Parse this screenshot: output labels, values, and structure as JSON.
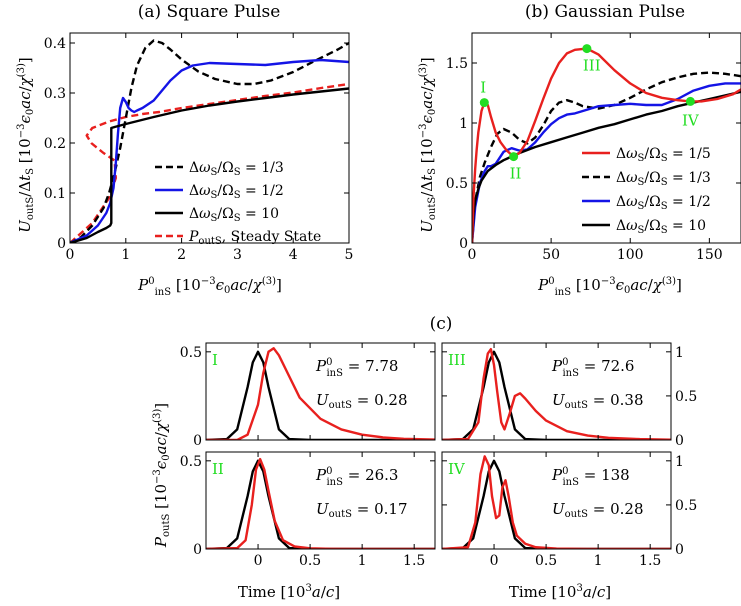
{
  "colors": {
    "red": "#e8201e",
    "black": "#000000",
    "blue": "#1414e6",
    "green": "#22dd22"
  },
  "chart_data": [
    {
      "id": "a",
      "type": "line",
      "title": "(a) Square Pulse",
      "xlabel": "P⁰inS   [10⁻³ε₀ac/χ⁽³⁾]",
      "ylabel": "UoutS/ΔtS  [10⁻³ε₀ac/χ⁽³⁾]",
      "xlim": [
        0,
        5
      ],
      "ylim": [
        0,
        0.42
      ],
      "xticks": [
        "0",
        "1",
        "2",
        "3",
        "4",
        "5"
      ],
      "yticks": [
        "0",
        "0.1",
        "0.2",
        "0.3",
        "0.4"
      ],
      "legend_position": "bottom-right",
      "series": [
        {
          "name": "ΔωS/ΩS = 1/3",
          "color": "#000000",
          "dash": "dashed",
          "x": [
            0,
            0.2,
            0.4,
            0.6,
            0.7,
            0.8,
            0.9,
            1.0,
            1.1,
            1.2,
            1.35,
            1.5,
            1.65,
            1.8,
            2.0,
            2.3,
            2.6,
            3.0,
            3.3,
            3.6,
            4.0,
            4.4,
            4.8,
            5.0
          ],
          "y": [
            0,
            0.012,
            0.035,
            0.07,
            0.1,
            0.14,
            0.19,
            0.25,
            0.31,
            0.355,
            0.39,
            0.405,
            0.4,
            0.387,
            0.367,
            0.343,
            0.328,
            0.318,
            0.318,
            0.325,
            0.342,
            0.365,
            0.387,
            0.4
          ]
        },
        {
          "name": "ΔωS/ΩS = 1/2",
          "color": "#1414e6",
          "dash": "solid",
          "x": [
            0,
            0.3,
            0.5,
            0.65,
            0.72,
            0.78,
            0.82,
            0.86,
            0.9,
            0.95,
            1.0,
            1.05,
            1.1,
            1.15,
            1.2,
            1.3,
            1.5,
            1.8,
            2.0,
            2.2,
            2.5,
            3.0,
            3.5,
            4.0,
            4.5,
            5.0
          ],
          "y": [
            0,
            0.015,
            0.035,
            0.06,
            0.08,
            0.11,
            0.16,
            0.22,
            0.27,
            0.29,
            0.282,
            0.27,
            0.265,
            0.262,
            0.265,
            0.27,
            0.285,
            0.325,
            0.345,
            0.355,
            0.36,
            0.358,
            0.356,
            0.362,
            0.366,
            0.362
          ]
        },
        {
          "name": "ΔωS/ΩS = 10",
          "color": "#000000",
          "dash": "solid",
          "x": [
            0,
            0.3,
            0.5,
            0.65,
            0.72,
            0.74,
            0.74,
            0.8,
            1.0,
            1.5,
            2.0,
            2.5,
            3.0,
            3.5,
            4.0,
            4.5,
            5.0
          ],
          "y": [
            0,
            0.01,
            0.022,
            0.03,
            0.035,
            0.04,
            0.23,
            0.232,
            0.238,
            0.252,
            0.265,
            0.275,
            0.283,
            0.29,
            0.297,
            0.303,
            0.309
          ]
        },
        {
          "name": "PoutS, Steady State",
          "color": "#e8201e",
          "dash": "dashed",
          "x": [
            0,
            0.4,
            0.7,
            0.82,
            0.8,
            0.6,
            0.38,
            0.3,
            0.4,
            0.7,
            1.0,
            1.3,
            1.6,
            2.0,
            2.5,
            3.0,
            3.5,
            4.0,
            4.5,
            5.0
          ],
          "y": [
            0,
            0.04,
            0.09,
            0.13,
            0.165,
            0.18,
            0.2,
            0.215,
            0.23,
            0.243,
            0.252,
            0.258,
            0.262,
            0.27,
            0.278,
            0.286,
            0.294,
            0.301,
            0.31,
            0.318
          ]
        }
      ]
    },
    {
      "id": "b",
      "type": "line",
      "title": "(b) Gaussian Pulse",
      "xlabel": "P⁰inS   [10⁻³ε₀ac/χ⁽³⁾]",
      "ylabel": "UoutS/ΔtS  [10⁻³ε₀ac/χ⁽³⁾]",
      "xlim": [
        0,
        170
      ],
      "ylim": [
        0,
        1.75
      ],
      "xticks": [
        "0",
        "50",
        "100",
        "150"
      ],
      "yticks": [
        "0",
        "0.5",
        "1",
        "1.5"
      ],
      "legend_position": "bottom-right",
      "series": [
        {
          "name": "ΔωS/ΩS = 1/5",
          "color": "#e8201e",
          "dash": "solid",
          "x": [
            0,
            1,
            2,
            3,
            4,
            6,
            7.78,
            10,
            12,
            15,
            18,
            22,
            26.3,
            30,
            35,
            40,
            45,
            50,
            55,
            60,
            65,
            72.6,
            80,
            90,
            100,
            110,
            120,
            130,
            138,
            145,
            155,
            165,
            170
          ],
          "y": [
            0,
            0.4,
            0.62,
            0.78,
            0.92,
            1.1,
            1.17,
            1.15,
            1.05,
            0.92,
            0.84,
            0.77,
            0.72,
            0.75,
            0.85,
            1.02,
            1.2,
            1.37,
            1.5,
            1.58,
            1.61,
            1.62,
            1.57,
            1.44,
            1.33,
            1.25,
            1.21,
            1.19,
            1.18,
            1.18,
            1.2,
            1.24,
            1.28
          ]
        },
        {
          "name": "ΔωS/ΩS = 1/3",
          "color": "#000000",
          "dash": "dashed",
          "x": [
            0,
            2,
            5,
            8,
            12,
            16,
            20,
            25,
            30,
            35,
            40,
            45,
            50,
            55,
            60,
            65,
            70,
            80,
            90,
            100,
            110,
            120,
            130,
            140,
            150,
            160,
            170
          ],
          "y": [
            0,
            0.35,
            0.55,
            0.67,
            0.8,
            0.91,
            0.95,
            0.92,
            0.86,
            0.83,
            0.88,
            0.98,
            1.1,
            1.17,
            1.19,
            1.17,
            1.14,
            1.12,
            1.15,
            1.21,
            1.28,
            1.34,
            1.38,
            1.41,
            1.42,
            1.41,
            1.39
          ]
        },
        {
          "name": "ΔωS/ΩS = 1/2",
          "color": "#1414e6",
          "dash": "solid",
          "x": [
            0,
            2,
            5,
            8,
            10,
            12,
            15,
            20,
            25,
            30,
            35,
            40,
            45,
            50,
            55,
            60,
            65,
            70,
            80,
            90,
            100,
            110,
            120,
            130,
            140,
            150,
            160,
            170
          ],
          "y": [
            0,
            0.3,
            0.5,
            0.6,
            0.64,
            0.64,
            0.66,
            0.76,
            0.79,
            0.77,
            0.78,
            0.84,
            0.92,
            0.99,
            1.04,
            1.07,
            1.08,
            1.1,
            1.14,
            1.15,
            1.16,
            1.15,
            1.15,
            1.2,
            1.27,
            1.31,
            1.33,
            1.33
          ]
        },
        {
          "name": "ΔωS/ΩS = 10",
          "color": "#000000",
          "dash": "solid",
          "x": [
            0,
            1,
            2,
            4,
            6,
            10,
            15,
            20,
            30,
            40,
            50,
            60,
            70,
            80,
            90,
            100,
            110,
            120,
            130,
            140,
            150,
            160,
            170
          ],
          "y": [
            0,
            0.25,
            0.35,
            0.45,
            0.52,
            0.6,
            0.65,
            0.69,
            0.75,
            0.8,
            0.84,
            0.88,
            0.92,
            0.96,
            0.99,
            1.03,
            1.07,
            1.1,
            1.14,
            1.17,
            1.2,
            1.23,
            1.26
          ]
        }
      ],
      "markers": [
        {
          "label": "I",
          "x": 7.78,
          "y": 1.17
        },
        {
          "label": "II",
          "x": 26.3,
          "y": 0.72
        },
        {
          "label": "III",
          "x": 72.6,
          "y": 1.62
        },
        {
          "label": "IV",
          "x": 138,
          "y": 1.18
        }
      ]
    },
    {
      "id": "c",
      "type": "line",
      "title": "(c)",
      "xlabel": "Time [10³a/c]",
      "ylabel_left": "PoutS   [10⁻³ε₀ac/χ⁽³⁾]",
      "xlim": [
        -0.5,
        1.7
      ],
      "xticks": [
        "0",
        "0.5",
        "1",
        "1.5"
      ],
      "panels": [
        {
          "label": "I",
          "p_in_label": "P⁰inS = 7.78",
          "u_out_label": "UoutS = 0.28",
          "ylim": [
            0,
            0.55
          ],
          "yticks": [
            "0",
            "0.5"
          ],
          "yaxis_side": "left",
          "input": {
            "x": [
              -0.5,
              -0.3,
              -0.2,
              -0.1,
              -0.05,
              0,
              0.05,
              0.1,
              0.2,
              0.3,
              0.5,
              1.7
            ],
            "y": [
              0,
              0.005,
              0.06,
              0.3,
              0.44,
              0.5,
              0.44,
              0.3,
              0.06,
              0.005,
              0,
              0
            ]
          },
          "output": {
            "x": [
              -0.5,
              -0.2,
              -0.1,
              0,
              0.05,
              0.1,
              0.15,
              0.2,
              0.3,
              0.4,
              0.6,
              0.8,
              1.0,
              1.2,
              1.4,
              1.7
            ],
            "y": [
              0,
              0.0,
              0.03,
              0.2,
              0.38,
              0.5,
              0.52,
              0.48,
              0.36,
              0.24,
              0.12,
              0.06,
              0.03,
              0.015,
              0.007,
              0.002
            ]
          }
        },
        {
          "label": "III",
          "p_in_label": "P⁰inS = 72.6",
          "u_out_label": "UoutS = 0.38",
          "ylim": [
            0,
            1.1
          ],
          "yticks": [
            "0",
            "0.5",
            "1"
          ],
          "yaxis_side": "right",
          "input": {
            "x": [
              -0.5,
              -0.3,
              -0.2,
              -0.1,
              -0.05,
              0,
              0.05,
              0.1,
              0.2,
              0.3,
              0.5,
              1.7
            ],
            "y": [
              0,
              0.01,
              0.12,
              0.6,
              0.88,
              1.0,
              0.88,
              0.6,
              0.12,
              0.01,
              0,
              0
            ]
          },
          "output": {
            "x": [
              -0.5,
              -0.25,
              -0.15,
              -0.1,
              -0.06,
              -0.03,
              0,
              0.03,
              0.07,
              0.1,
              0.15,
              0.2,
              0.25,
              0.3,
              0.4,
              0.5,
              0.7,
              0.9,
              1.1,
              1.4,
              1.7
            ],
            "y": [
              0,
              0.01,
              0.2,
              0.7,
              0.98,
              1.03,
              0.85,
              0.55,
              0.2,
              0.12,
              0.3,
              0.5,
              0.53,
              0.47,
              0.33,
              0.22,
              0.1,
              0.05,
              0.025,
              0.01,
              0.003
            ]
          }
        },
        {
          "label": "II",
          "p_in_label": "P⁰inS = 26.3",
          "u_out_label": "UoutS = 0.17",
          "ylim": [
            0,
            0.55
          ],
          "yticks": [
            "0",
            "0.5"
          ],
          "yaxis_side": "left",
          "input": {
            "x": [
              -0.5,
              -0.3,
              -0.2,
              -0.1,
              -0.05,
              0,
              0.05,
              0.1,
              0.2,
              0.3,
              0.5,
              1.7
            ],
            "y": [
              0,
              0.005,
              0.06,
              0.3,
              0.44,
              0.5,
              0.44,
              0.3,
              0.06,
              0.005,
              0,
              0
            ]
          },
          "output": {
            "x": [
              -0.5,
              -0.2,
              -0.12,
              -0.06,
              -0.02,
              0.02,
              0.06,
              0.1,
              0.16,
              0.24,
              0.35,
              0.5,
              0.7,
              1.0,
              1.7
            ],
            "y": [
              0,
              0.005,
              0.05,
              0.25,
              0.45,
              0.51,
              0.45,
              0.33,
              0.16,
              0.05,
              0.015,
              0.004,
              0.001,
              0,
              0
            ]
          }
        },
        {
          "label": "IV",
          "p_in_label": "P⁰inS = 138",
          "u_out_label": "UoutS = 0.28",
          "ylim": [
            0,
            1.1
          ],
          "yticks": [
            "0",
            "0.5",
            "1"
          ],
          "yaxis_side": "right",
          "input": {
            "x": [
              -0.5,
              -0.3,
              -0.2,
              -0.1,
              -0.05,
              0,
              0.05,
              0.1,
              0.2,
              0.3,
              0.5,
              1.7
            ],
            "y": [
              0,
              0.01,
              0.12,
              0.6,
              0.88,
              1.0,
              0.88,
              0.6,
              0.12,
              0.01,
              0,
              0
            ]
          },
          "output": {
            "x": [
              -0.5,
              -0.25,
              -0.18,
              -0.13,
              -0.09,
              -0.05,
              -0.02,
              0.02,
              0.05,
              0.08,
              0.11,
              0.14,
              0.18,
              0.22,
              0.3,
              0.4,
              0.6,
              0.9,
              1.7
            ],
            "y": [
              0,
              0.02,
              0.3,
              0.85,
              1.05,
              0.95,
              0.6,
              0.35,
              0.38,
              0.7,
              0.78,
              0.6,
              0.3,
              0.15,
              0.06,
              0.02,
              0.005,
              0.001,
              0
            ]
          }
        }
      ]
    }
  ]
}
